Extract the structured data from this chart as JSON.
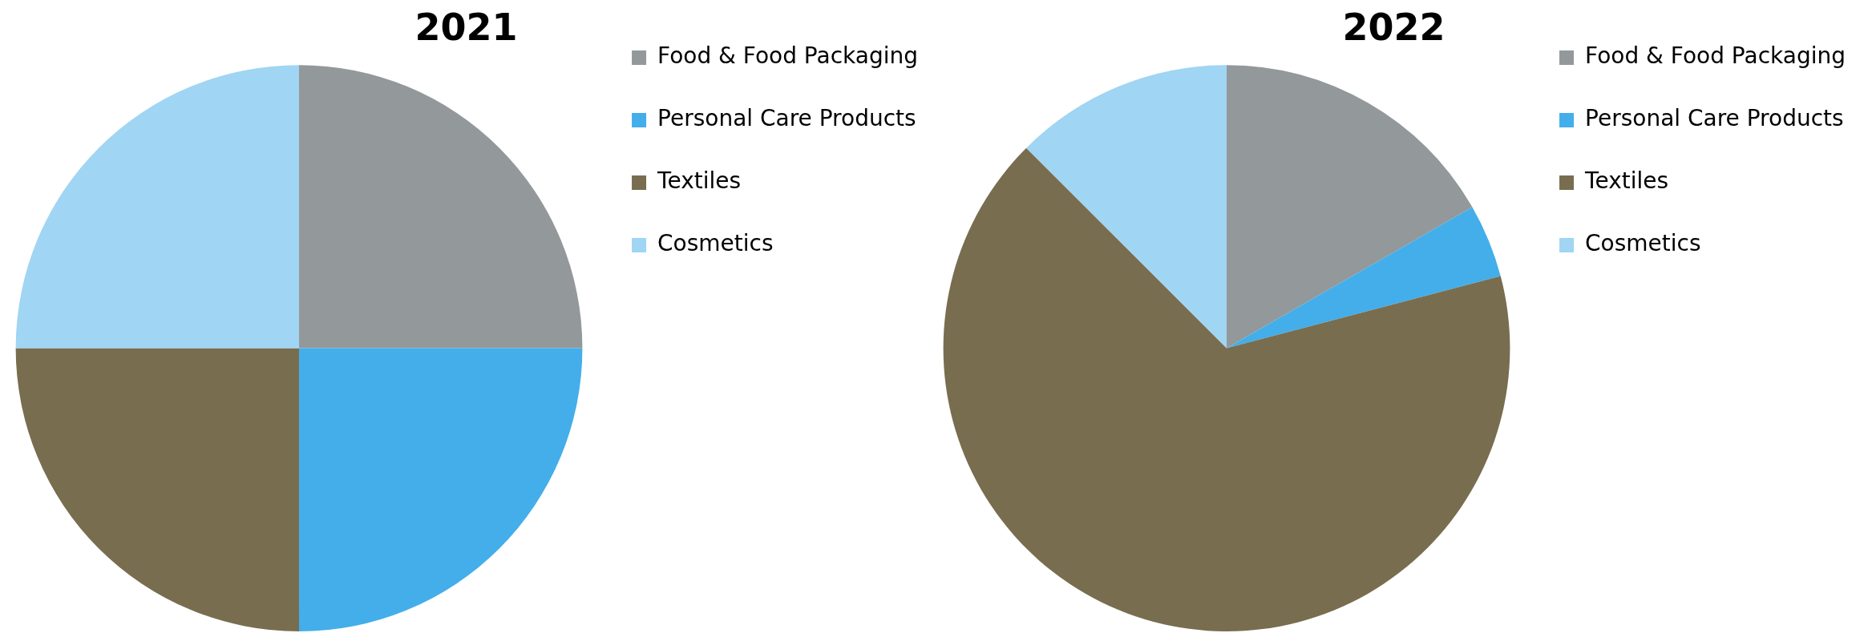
{
  "chart_data": [
    {
      "type": "pie",
      "title": "2021",
      "categories": [
        "Food & Food Packaging",
        "Personal Care Products",
        "Textiles",
        "Cosmetics"
      ],
      "values": [
        25,
        25,
        25,
        25
      ],
      "colors": [
        "#93989a",
        "#43aeea",
        "#786d4f",
        "#a0d5f3"
      ],
      "legend": "right"
    },
    {
      "type": "pie",
      "title": "2022",
      "categories": [
        "Food & Food Packaging",
        "Personal Care Products",
        "Textiles",
        "Cosmetics"
      ],
      "values": [
        16.7,
        4.2,
        66.6,
        12.5
      ],
      "colors": [
        "#93989a",
        "#43aeea",
        "#786d4f",
        "#a0d5f3"
      ],
      "legend": "right"
    }
  ]
}
